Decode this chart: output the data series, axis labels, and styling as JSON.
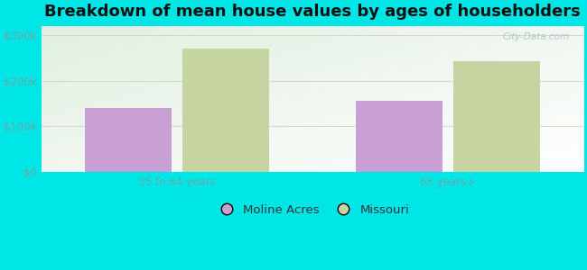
{
  "title": "Breakdown of mean house values by ages of householders",
  "categories": [
    "35 to 64 years",
    "65 years+"
  ],
  "moline_acres_values": [
    140000,
    155000
  ],
  "missouri_values": [
    270000,
    243000
  ],
  "moline_acres_color": "#c9a0d4",
  "missouri_color": "#c5d4a0",
  "bar_width": 0.32,
  "ylim": [
    0,
    320000
  ],
  "yticks": [
    0,
    100000,
    200000,
    300000
  ],
  "ytick_labels": [
    "$0",
    "$100k",
    "$200k",
    "$300k"
  ],
  "background_color": "#00e5e5",
  "legend_labels": [
    "Moline Acres",
    "Missouri"
  ],
  "title_fontsize": 13,
  "tick_fontsize": 8.5,
  "legend_fontsize": 9.5,
  "tick_color": "#66aaaa",
  "legend_text_color": "#333333",
  "grid_color": "#d0d8cc",
  "watermark": "City-Data.com",
  "plot_bg_left": "#c8e8c0",
  "plot_bg_right": "#f0f8f0"
}
